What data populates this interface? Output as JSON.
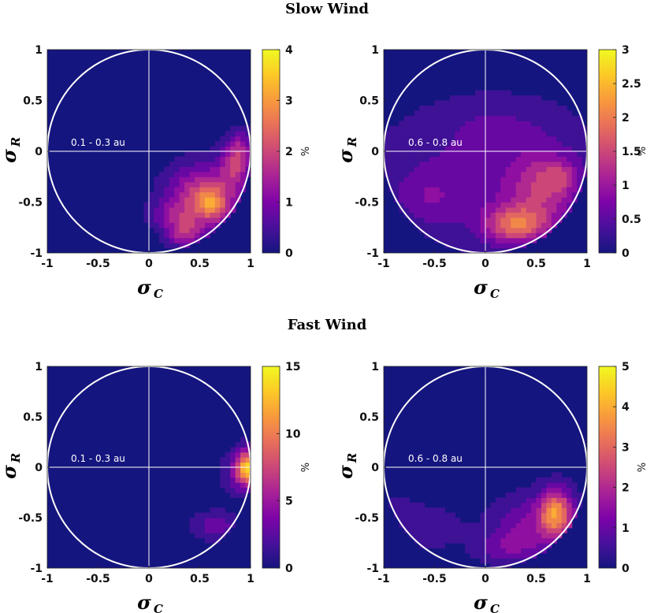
{
  "figure": {
    "title_top": "Slow Wind",
    "title_bottom": "Fast Wind"
  },
  "colors": {
    "background": "#15157f",
    "circle": "#ffffff",
    "axes_lines": "#ffffff"
  },
  "colormap_name": "plasma",
  "chart_data": [
    {
      "type": "heatmap",
      "title": "Slow Wind",
      "annotation": "0.1 - 0.3 au",
      "xlabel_main": "σ",
      "xlabel_sub": "C",
      "ylabel_main": "σ",
      "ylabel_sub": "R",
      "xlim": [
        -1,
        1
      ],
      "ylim": [
        -1,
        1
      ],
      "xticks": [
        "-1",
        "-0.5",
        "0",
        "0.5",
        "1"
      ],
      "yticks": [
        "-1",
        "-0.5",
        "0",
        "0.5",
        "1"
      ],
      "colorbar": {
        "label": "%",
        "min": 0,
        "max": 4,
        "ticks": [
          "0",
          "1",
          "2",
          "3",
          "4"
        ]
      },
      "blobs": [
        {
          "x": 0.55,
          "y": -0.45,
          "sx": 0.25,
          "sy": 0.22,
          "amp": 2.2
        },
        {
          "x": 0.62,
          "y": -0.52,
          "sx": 0.1,
          "sy": 0.1,
          "amp": 1.2
        },
        {
          "x": 0.85,
          "y": -0.15,
          "sx": 0.1,
          "sy": 0.14,
          "amp": 1.4
        },
        {
          "x": 0.9,
          "y": 0.05,
          "sx": 0.1,
          "sy": 0.12,
          "amp": 1.1
        },
        {
          "x": 0.35,
          "y": -0.8,
          "sx": 0.12,
          "sy": 0.1,
          "amp": 1.4
        },
        {
          "x": 0.2,
          "y": -0.62,
          "sx": 0.15,
          "sy": 0.1,
          "amp": 0.7
        }
      ]
    },
    {
      "type": "heatmap",
      "title": "Slow Wind",
      "annotation": "0.6 - 0.8 au",
      "xlabel_main": "σ",
      "xlabel_sub": "C",
      "ylabel_main": "σ",
      "ylabel_sub": "R",
      "xlim": [
        -1,
        1
      ],
      "ylim": [
        -1,
        1
      ],
      "xticks": [
        "-1",
        "-0.5",
        "0",
        "0.5",
        "1"
      ],
      "yticks": [
        "-1",
        "-0.5",
        "0",
        "0.5",
        "1"
      ],
      "colorbar": {
        "label": "%",
        "min": 0,
        "max": 3,
        "ticks": [
          "0",
          "0.5",
          "1",
          "1.5",
          "2",
          "2.5",
          "3"
        ]
      },
      "blobs": [
        {
          "x": 0.0,
          "y": -0.3,
          "sx": 0.9,
          "sy": 0.45,
          "amp": 0.6
        },
        {
          "x": 0.3,
          "y": -0.72,
          "sx": 0.22,
          "sy": 0.13,
          "amp": 1.6
        },
        {
          "x": 0.55,
          "y": -0.35,
          "sx": 0.22,
          "sy": 0.25,
          "amp": 0.9
        },
        {
          "x": 0.75,
          "y": -0.25,
          "sx": 0.12,
          "sy": 0.12,
          "amp": 0.6
        },
        {
          "x": 0.1,
          "y": 0.3,
          "sx": 0.45,
          "sy": 0.2,
          "amp": 0.3
        },
        {
          "x": -0.55,
          "y": -0.45,
          "sx": 0.2,
          "sy": 0.18,
          "amp": 0.35
        }
      ]
    },
    {
      "type": "heatmap",
      "title": "Fast Wind",
      "annotation": "0.1 - 0.3 au",
      "xlabel_main": "σ",
      "xlabel_sub": "C",
      "ylabel_main": "σ",
      "ylabel_sub": "R",
      "xlim": [
        -1,
        1
      ],
      "ylim": [
        -1,
        1
      ],
      "xticks": [
        "-1",
        "-0.5",
        "0",
        "0.5",
        "1"
      ],
      "yticks": [
        "-1",
        "-0.5",
        "0",
        "0.5",
        "1"
      ],
      "colorbar": {
        "label": "%",
        "min": 0,
        "max": 15,
        "ticks": [
          "0",
          "5",
          "10",
          "15"
        ]
      },
      "blobs": [
        {
          "x": 0.98,
          "y": 0.0,
          "sx": 0.08,
          "sy": 0.12,
          "amp": 12.0
        },
        {
          "x": 0.88,
          "y": -0.05,
          "sx": 0.12,
          "sy": 0.16,
          "amp": 3.0
        },
        {
          "x": 0.65,
          "y": -0.58,
          "sx": 0.15,
          "sy": 0.1,
          "amp": 3.5
        }
      ]
    },
    {
      "type": "heatmap",
      "title": "Fast Wind",
      "annotation": "0.6 - 0.8 au",
      "xlabel_main": "σ",
      "xlabel_sub": "C",
      "ylabel_main": "σ",
      "ylabel_sub": "R",
      "xlim": [
        -1,
        1
      ],
      "ylim": [
        -1,
        1
      ],
      "xticks": [
        "-1",
        "-0.5",
        "0",
        "0.5",
        "1"
      ],
      "yticks": [
        "-1",
        "-0.5",
        "0",
        "0.5",
        "1"
      ],
      "colorbar": {
        "label": "%",
        "min": 0,
        "max": 5,
        "ticks": [
          "0",
          "1",
          "2",
          "3",
          "4",
          "5"
        ]
      },
      "blobs": [
        {
          "x": 0.7,
          "y": -0.45,
          "sx": 0.12,
          "sy": 0.17,
          "amp": 3.2
        },
        {
          "x": 0.45,
          "y": -0.58,
          "sx": 0.28,
          "sy": 0.22,
          "amp": 1.3
        },
        {
          "x": 0.2,
          "y": -0.8,
          "sx": 0.22,
          "sy": 0.12,
          "amp": 0.9
        },
        {
          "x": -0.6,
          "y": -0.6,
          "sx": 0.25,
          "sy": 0.15,
          "amp": 0.8
        },
        {
          "x": -0.85,
          "y": -0.4,
          "sx": 0.12,
          "sy": 0.12,
          "amp": 0.4
        }
      ]
    }
  ]
}
